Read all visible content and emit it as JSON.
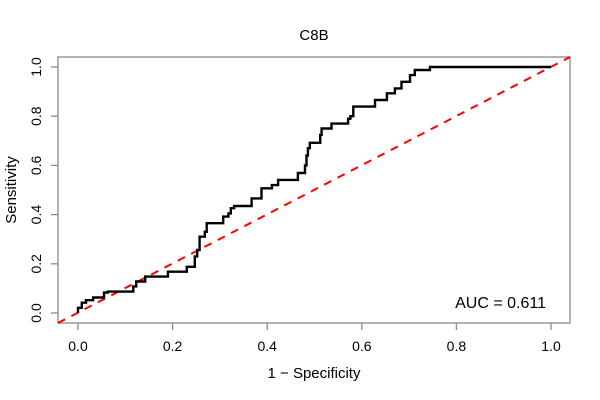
{
  "chart_data": {
    "type": "line",
    "title": "C8B",
    "xlabel": "1 − Specificity",
    "ylabel": "Sensitivity",
    "auc_label": "AUC = 0.611",
    "auc_value": 0.611,
    "xlim": [
      0,
      1
    ],
    "ylim": [
      0,
      1
    ],
    "x_tick_labels": [
      "0.0",
      "0.2",
      "0.4",
      "0.6",
      "0.8",
      "1.0"
    ],
    "y_tick_labels": [
      "0.0",
      "0.2",
      "0.4",
      "0.6",
      "0.8",
      "1.0"
    ],
    "x_tick_values": [
      0.0,
      0.2,
      0.4,
      0.6,
      0.8,
      1.0
    ],
    "y_tick_values": [
      0.0,
      0.2,
      0.4,
      0.6,
      0.8,
      1.0
    ],
    "grid": false,
    "legend": false,
    "colors": {
      "roc_curve": "#000000",
      "reference_line": "#ff0000",
      "box_and_ticks": "#8a8a8a",
      "background": "#ffffff"
    },
    "series": [
      {
        "name": "ROC step curve (x = 1 - specificity, y = sensitivity)",
        "style": "step",
        "points": [
          [
            0.0,
            0.0
          ],
          [
            0.0,
            0.021
          ],
          [
            0.008,
            0.021
          ],
          [
            0.008,
            0.042
          ],
          [
            0.017,
            0.042
          ],
          [
            0.017,
            0.052
          ],
          [
            0.032,
            0.052
          ],
          [
            0.032,
            0.063
          ],
          [
            0.055,
            0.063
          ],
          [
            0.055,
            0.083
          ],
          [
            0.063,
            0.083
          ],
          [
            0.063,
            0.087
          ],
          [
            0.117,
            0.087
          ],
          [
            0.117,
            0.108
          ],
          [
            0.123,
            0.108
          ],
          [
            0.123,
            0.128
          ],
          [
            0.142,
            0.128
          ],
          [
            0.142,
            0.148
          ],
          [
            0.19,
            0.148
          ],
          [
            0.19,
            0.168
          ],
          [
            0.23,
            0.168
          ],
          [
            0.23,
            0.188
          ],
          [
            0.247,
            0.188
          ],
          [
            0.247,
            0.23
          ],
          [
            0.252,
            0.23
          ],
          [
            0.252,
            0.256
          ],
          [
            0.257,
            0.256
          ],
          [
            0.257,
            0.31
          ],
          [
            0.268,
            0.31
          ],
          [
            0.268,
            0.33
          ],
          [
            0.272,
            0.33
          ],
          [
            0.272,
            0.365
          ],
          [
            0.307,
            0.365
          ],
          [
            0.307,
            0.392
          ],
          [
            0.318,
            0.392
          ],
          [
            0.318,
            0.405
          ],
          [
            0.323,
            0.405
          ],
          [
            0.323,
            0.426
          ],
          [
            0.33,
            0.426
          ],
          [
            0.33,
            0.435
          ],
          [
            0.367,
            0.435
          ],
          [
            0.367,
            0.466
          ],
          [
            0.388,
            0.466
          ],
          [
            0.388,
            0.507
          ],
          [
            0.41,
            0.507
          ],
          [
            0.41,
            0.52
          ],
          [
            0.423,
            0.52
          ],
          [
            0.423,
            0.541
          ],
          [
            0.465,
            0.541
          ],
          [
            0.465,
            0.569
          ],
          [
            0.48,
            0.569
          ],
          [
            0.48,
            0.6
          ],
          [
            0.483,
            0.6
          ],
          [
            0.483,
            0.64
          ],
          [
            0.486,
            0.64
          ],
          [
            0.486,
            0.67
          ],
          [
            0.49,
            0.67
          ],
          [
            0.49,
            0.692
          ],
          [
            0.512,
            0.692
          ],
          [
            0.512,
            0.724
          ],
          [
            0.515,
            0.724
          ],
          [
            0.515,
            0.75
          ],
          [
            0.536,
            0.75
          ],
          [
            0.536,
            0.77
          ],
          [
            0.571,
            0.77
          ],
          [
            0.571,
            0.79
          ],
          [
            0.576,
            0.79
          ],
          [
            0.576,
            0.8
          ],
          [
            0.582,
            0.8
          ],
          [
            0.582,
            0.839
          ],
          [
            0.628,
            0.839
          ],
          [
            0.628,
            0.866
          ],
          [
            0.653,
            0.866
          ],
          [
            0.653,
            0.893
          ],
          [
            0.67,
            0.893
          ],
          [
            0.67,
            0.913
          ],
          [
            0.684,
            0.913
          ],
          [
            0.684,
            0.94
          ],
          [
            0.702,
            0.94
          ],
          [
            0.702,
            0.967
          ],
          [
            0.712,
            0.967
          ],
          [
            0.712,
            0.988
          ],
          [
            0.744,
            0.988
          ],
          [
            0.744,
            1.0
          ],
          [
            1.0,
            1.0
          ]
        ]
      },
      {
        "name": "Chance reference diagonal",
        "style": "dashed",
        "points": [
          [
            0,
            0
          ],
          [
            1,
            1
          ]
        ]
      }
    ]
  }
}
